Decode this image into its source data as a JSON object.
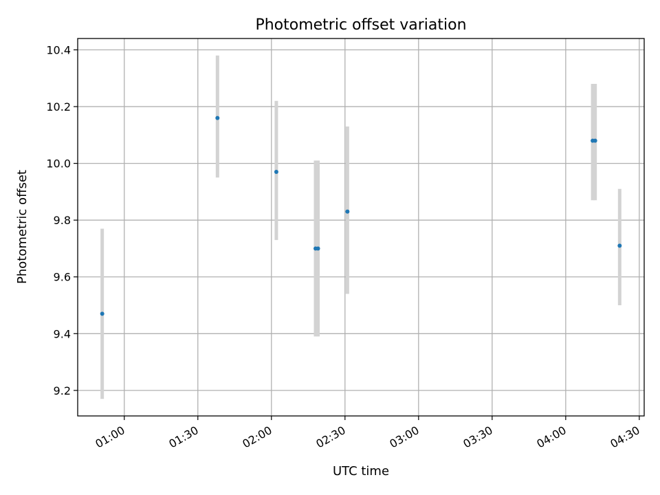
{
  "chart_data": {
    "type": "scatter",
    "title": "Photometric offset variation",
    "xlabel": "UTC time",
    "ylabel": "Photometric offset",
    "x_unit": "UTC time (HH:MM)",
    "xlim": [
      "00:41",
      "04:32"
    ],
    "ylim": [
      9.11,
      10.44
    ],
    "x_ticks": [
      "01:00",
      "01:30",
      "02:00",
      "02:30",
      "03:00",
      "03:30",
      "04:00",
      "04:30"
    ],
    "y_ticks": [
      "9.2",
      "9.4",
      "9.6",
      "9.8",
      "10.0",
      "10.2",
      "10.4"
    ],
    "grid": true,
    "colors": {
      "point": "#1f77b4",
      "errorbar": "#d3d3d3",
      "grid": "#b0b0b0"
    },
    "points": [
      {
        "x": "00:51",
        "y": 9.47,
        "yerr_low": 9.17,
        "yerr_high": 9.77
      },
      {
        "x": "01:38",
        "y": 10.16,
        "yerr_low": 9.95,
        "yerr_high": 10.38
      },
      {
        "x": "02:02",
        "y": 9.97,
        "yerr_low": 9.73,
        "yerr_high": 10.22
      },
      {
        "x": "02:18",
        "y": 9.7,
        "yerr_low": 9.39,
        "yerr_high": 10.01
      },
      {
        "x": "02:19",
        "y": 9.7,
        "yerr_low": 9.39,
        "yerr_high": 10.01
      },
      {
        "x": "02:31",
        "y": 9.83,
        "yerr_low": 9.54,
        "yerr_high": 10.13
      },
      {
        "x": "04:11",
        "y": 10.08,
        "yerr_low": 9.87,
        "yerr_high": 10.28
      },
      {
        "x": "04:12",
        "y": 10.08,
        "yerr_low": 9.87,
        "yerr_high": 10.28
      },
      {
        "x": "04:22",
        "y": 9.71,
        "yerr_low": 9.5,
        "yerr_high": 9.91
      }
    ]
  }
}
